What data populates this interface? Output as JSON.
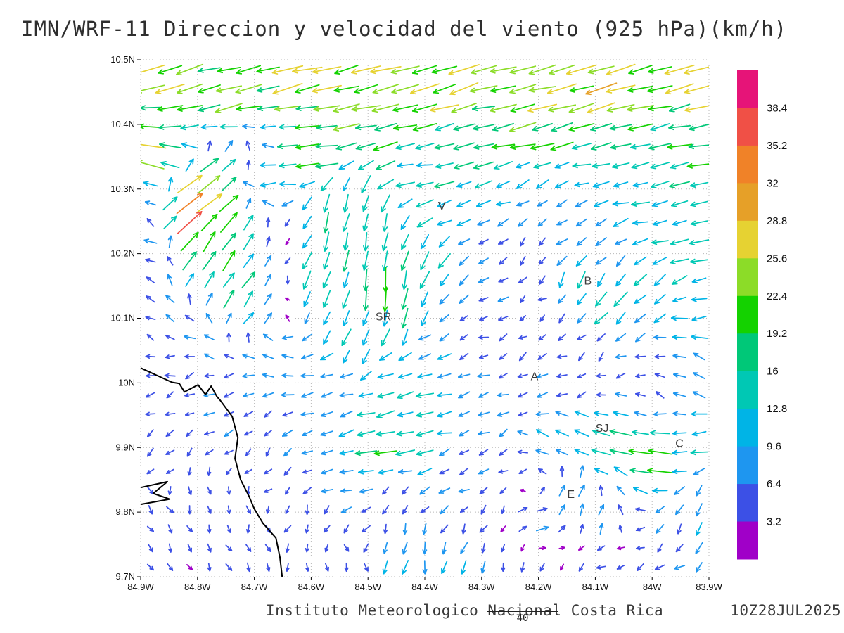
{
  "title": "IMN/WRF-11 Direccion y velocidad del viento (925 hPa)(km/h)",
  "footer": {
    "credit": "Instituto Meteorologico Nacional Costa Rica",
    "datetime": "10Z28JUL2025",
    "ref_label": "40"
  },
  "chart_data": {
    "type": "quiver",
    "title": "IMN/WRF-11 Direccion y velocidad del viento (925 hPa)(km/h)",
    "variable": "wind direction and speed",
    "pressure_level": "925 hPa",
    "units": "km/h",
    "lon_range": [
      -84.9,
      -83.9
    ],
    "lat_range": [
      9.7,
      10.5
    ],
    "x_ticks": [
      {
        "lon": -84.9,
        "label": "84.9W"
      },
      {
        "lon": -84.8,
        "label": "84.8W"
      },
      {
        "lon": -84.7,
        "label": "84.7W"
      },
      {
        "lon": -84.6,
        "label": "84.6W"
      },
      {
        "lon": -84.5,
        "label": "84.5W"
      },
      {
        "lon": -84.4,
        "label": "84.4W"
      },
      {
        "lon": -84.3,
        "label": "84.3W"
      },
      {
        "lon": -84.2,
        "label": "84.2W"
      },
      {
        "lon": -84.1,
        "label": "84.1W"
      },
      {
        "lon": -84.0,
        "label": "84W"
      },
      {
        "lon": -83.9,
        "label": "83.9W"
      }
    ],
    "y_ticks": [
      {
        "lat": 10.5,
        "label": "10.5N"
      },
      {
        "lat": 10.4,
        "label": "10.4N"
      },
      {
        "lat": 10.3,
        "label": "10.3N"
      },
      {
        "lat": 10.2,
        "label": "10.2N"
      },
      {
        "lat": 10.1,
        "label": "10.1N"
      },
      {
        "lat": 10.0,
        "label": "10N"
      },
      {
        "lat": 9.9,
        "label": "9.9N"
      },
      {
        "lat": 9.8,
        "label": "9.8N"
      },
      {
        "lat": 9.7,
        "label": "9.7N"
      }
    ],
    "grid": {
      "nx": 29,
      "ny": 27
    },
    "speed_levels": [
      3.2,
      6.4,
      9.6,
      12.8,
      16,
      19.2,
      22.4,
      25.6,
      28.8,
      32,
      35.2,
      38.4
    ],
    "colorbar_labels_top_to_bottom": [
      "38.4",
      "35.2",
      "32",
      "28.8",
      "25.6",
      "22.4",
      "19.2",
      "16",
      "12.8",
      "9.6",
      "6.4",
      "3.2"
    ],
    "speed_colors": [
      "#a000c8",
      "#3c50e6",
      "#1e96f0",
      "#00b4e6",
      "#00c8b4",
      "#00c878",
      "#14d200",
      "#8cdc28",
      "#e6d232",
      "#e6a028",
      "#f08228",
      "#f05046",
      "#e61478"
    ],
    "reference_vector": 40,
    "cities": [
      {
        "label": "V",
        "lon": -84.37,
        "lat": 10.268
      },
      {
        "label": "B",
        "lon": -84.113,
        "lat": 10.152
      },
      {
        "label": "SR",
        "lon": -84.473,
        "lat": 10.097
      },
      {
        "label": "A",
        "lon": -84.207,
        "lat": 10.004
      },
      {
        "label": "SJ",
        "lon": -84.088,
        "lat": 9.924
      },
      {
        "label": "C",
        "lon": -83.952,
        "lat": 9.901
      },
      {
        "label": "E",
        "lon": -84.143,
        "lat": 9.822
      }
    ],
    "coastlines": [
      [
        [
          -84.9,
          10.023
        ],
        [
          -84.845,
          10.001
        ],
        [
          -84.832,
          9.999
        ],
        [
          -84.823,
          9.986
        ],
        [
          -84.799,
          9.997
        ],
        [
          -84.786,
          9.982
        ],
        [
          -84.776,
          9.995
        ],
        [
          -84.766,
          9.979
        ],
        [
          -84.76,
          9.973
        ],
        [
          -84.739,
          9.948
        ],
        [
          -84.729,
          9.915
        ],
        [
          -84.734,
          9.883
        ],
        [
          -84.724,
          9.85
        ],
        [
          -84.709,
          9.824
        ],
        [
          -84.7,
          9.805
        ],
        [
          -84.685,
          9.783
        ],
        [
          -84.662,
          9.76
        ],
        [
          -84.655,
          9.73
        ],
        [
          -84.651,
          9.7
        ]
      ],
      [
        [
          -84.9,
          9.838
        ],
        [
          -84.853,
          9.847
        ],
        [
          -84.878,
          9.829
        ],
        [
          -84.849,
          9.82
        ],
        [
          -84.9,
          9.812
        ]
      ]
    ],
    "control_points_fields": [
      "lon",
      "lat",
      "u_kmh_east",
      "v_kmh_north"
    ],
    "control_points": [
      [
        -84.85,
        10.48,
        -23,
        -7
      ],
      [
        -84.6,
        10.48,
        -25,
        -6
      ],
      [
        -84.35,
        10.48,
        -24,
        -7
      ],
      [
        -84.1,
        10.48,
        -25,
        -6
      ],
      [
        -83.92,
        10.48,
        -23,
        -7
      ],
      [
        -84.75,
        10.44,
        -22,
        -5
      ],
      [
        -84.45,
        10.44,
        -23,
        -5
      ],
      [
        -84.15,
        10.44,
        -22,
        -6
      ],
      [
        -83.95,
        10.44,
        -22,
        -5
      ],
      [
        -84.85,
        10.4,
        -18,
        -3
      ],
      [
        -84.55,
        10.4,
        -20,
        -4
      ],
      [
        -84.25,
        10.4,
        -20,
        -4
      ],
      [
        -83.95,
        10.4,
        -19,
        -4
      ],
      [
        -84.88,
        10.36,
        -26,
        5
      ],
      [
        -84.6,
        10.36,
        -17,
        -2
      ],
      [
        -84.3,
        10.36,
        -16,
        -3
      ],
      [
        -83.95,
        10.36,
        -17,
        -3
      ],
      [
        -84.7,
        10.32,
        -15,
        -2
      ],
      [
        -84.4,
        10.32,
        -14,
        -2
      ],
      [
        -84.05,
        10.32,
        -15,
        -2
      ],
      [
        -84.82,
        10.27,
        30,
        22
      ],
      [
        -84.77,
        10.3,
        22,
        16
      ],
      [
        -84.73,
        10.33,
        14,
        12
      ],
      [
        -84.78,
        10.22,
        12,
        18
      ],
      [
        -84.74,
        10.16,
        10,
        14
      ],
      [
        -84.7,
        10.11,
        6,
        10
      ],
      [
        -84.88,
        10.28,
        -8,
        2
      ],
      [
        -84.88,
        10.21,
        -7,
        3
      ],
      [
        -84.55,
        10.27,
        -3,
        -14
      ],
      [
        -84.5,
        10.22,
        -2,
        -17
      ],
      [
        -84.47,
        10.15,
        -1,
        -19
      ],
      [
        -84.44,
        10.08,
        -3,
        -15
      ],
      [
        -84.52,
        10.05,
        -5,
        -12
      ],
      [
        -84.4,
        10.18,
        -6,
        -12
      ],
      [
        -84.58,
        10.15,
        -6,
        -13
      ],
      [
        -84.35,
        10.26,
        -11,
        -5
      ],
      [
        -84.25,
        10.3,
        -9,
        -4
      ],
      [
        -84.15,
        10.28,
        -8,
        -3
      ],
      [
        -84.05,
        10.3,
        -10,
        -3
      ],
      [
        -83.95,
        10.27,
        -12,
        -4
      ],
      [
        -84.3,
        10.2,
        -5,
        -4
      ],
      [
        -84.2,
        10.22,
        -4,
        -3
      ],
      [
        -84.1,
        10.2,
        -7,
        -4
      ],
      [
        -83.93,
        10.2,
        -13,
        -2
      ],
      [
        -83.92,
        10.1,
        -11,
        -1
      ],
      [
        -84.12,
        10.16,
        -5,
        -12
      ],
      [
        -84.07,
        10.12,
        -8,
        -11
      ],
      [
        -84.0,
        10.15,
        -9,
        -6
      ],
      [
        -84.8,
        10.08,
        -7,
        2
      ],
      [
        -84.68,
        10.05,
        -8,
        1
      ],
      [
        -84.55,
        10.0,
        -9,
        -1
      ],
      [
        -84.3,
        10.08,
        -4,
        -2
      ],
      [
        -84.2,
        10.1,
        -3,
        -2
      ],
      [
        -84.1,
        10.05,
        -4,
        -3
      ],
      [
        -84.4,
        10.05,
        -9,
        -3
      ],
      [
        -84.45,
        10.02,
        -11,
        -3
      ],
      [
        -84.85,
        9.99,
        -5,
        -2
      ],
      [
        -84.75,
        9.97,
        -6,
        -2
      ],
      [
        -84.6,
        9.97,
        -8,
        -2
      ],
      [
        -84.5,
        9.96,
        -12,
        -3
      ],
      [
        -84.4,
        9.95,
        -13,
        -3
      ],
      [
        -84.3,
        9.97,
        -7,
        -2
      ],
      [
        -84.2,
        10.0,
        -6,
        -2
      ],
      [
        -84.1,
        9.99,
        -4,
        -2
      ],
      [
        -84.0,
        10.0,
        -5,
        2
      ],
      [
        -83.92,
        10.02,
        -8,
        3
      ],
      [
        -84.48,
        9.91,
        -17,
        -3
      ],
      [
        -84.42,
        9.92,
        -16,
        -2
      ],
      [
        -84.85,
        9.9,
        -4,
        -3
      ],
      [
        -84.7,
        9.88,
        -3,
        -3
      ],
      [
        -84.6,
        9.87,
        -5,
        -3
      ],
      [
        -84.55,
        9.85,
        -8,
        -2
      ],
      [
        -84.35,
        9.88,
        -6,
        -3
      ],
      [
        -84.25,
        9.88,
        -4,
        -3
      ],
      [
        -84.18,
        9.9,
        -8,
        4
      ],
      [
        -84.12,
        9.93,
        -13,
        6
      ],
      [
        -84.06,
        9.9,
        -17,
        4
      ],
      [
        -83.99,
        9.87,
        -19,
        3
      ],
      [
        -83.93,
        9.9,
        -11,
        -2
      ],
      [
        -83.91,
        9.83,
        -4,
        -8
      ],
      [
        -84.14,
        9.84,
        3,
        9
      ],
      [
        -84.1,
        9.8,
        5,
        8
      ],
      [
        -84.05,
        9.83,
        -6,
        4
      ],
      [
        -84.85,
        9.8,
        2,
        -4
      ],
      [
        -84.75,
        9.8,
        1,
        -4
      ],
      [
        -84.6,
        9.8,
        -2,
        -4
      ],
      [
        -84.45,
        9.8,
        -2,
        -5
      ],
      [
        -84.3,
        9.79,
        -3,
        -4
      ],
      [
        -84.2,
        9.78,
        8,
        2
      ],
      [
        -83.95,
        9.79,
        -3,
        -6
      ],
      [
        -84.85,
        9.73,
        2,
        -3
      ],
      [
        -84.7,
        9.73,
        2,
        -4
      ],
      [
        -84.55,
        9.72,
        1,
        -4
      ],
      [
        -84.42,
        9.71,
        -2,
        -10
      ],
      [
        -84.33,
        9.7,
        -2,
        -9
      ],
      [
        -84.22,
        9.72,
        -3,
        -4
      ],
      [
        -84.1,
        9.73,
        -4,
        -3
      ],
      [
        -83.95,
        9.72,
        -5,
        -3
      ],
      [
        -83.91,
        9.76,
        -2,
        -9
      ]
    ]
  }
}
